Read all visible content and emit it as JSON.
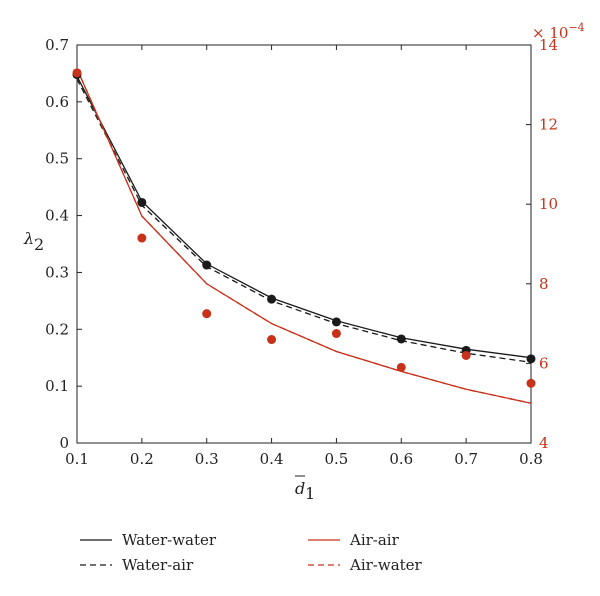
{
  "colors": {
    "black": "#1a1a1a",
    "red": "#c8311a"
  },
  "chart_data": {
    "type": "line",
    "x": [
      0.1,
      0.2,
      0.3,
      0.4,
      0.5,
      0.6,
      0.7,
      0.8
    ],
    "xlim": [
      0.1,
      0.8
    ],
    "xticks": [
      "0.1",
      "0.2",
      "0.3",
      "0.4",
      "0.5",
      "0.6",
      "0.7",
      "0.8"
    ],
    "xlabel_main": "d",
    "xlabel_sub": "1",
    "ylabel_main": "λ",
    "ylabel_sub": "2",
    "ylim_left": [
      0,
      0.7
    ],
    "yticks_left": [
      "0",
      "0.1",
      "0.2",
      "0.3",
      "0.4",
      "0.5",
      "0.6",
      "0.7"
    ],
    "ylim_right": [
      4,
      14
    ],
    "yticks_right": [
      "4",
      "6",
      "8",
      "10",
      "12",
      "14"
    ],
    "right_axis_multiplier_base": "× 10",
    "right_axis_multiplier_exp": "−4",
    "grid": false,
    "legend_position": "bottom",
    "series": [
      {
        "name": "Water-water",
        "axis": "left",
        "style": "solid",
        "color": "#1a1a1a",
        "values": [
          0.645,
          0.425,
          0.315,
          0.255,
          0.215,
          0.185,
          0.165,
          0.15
        ]
      },
      {
        "name": "Water-air",
        "axis": "left",
        "style": "dashed",
        "color": "#1a1a1a",
        "values": [
          0.64,
          0.418,
          0.31,
          0.25,
          0.21,
          0.18,
          0.158,
          0.142
        ]
      },
      {
        "name": "Air-air",
        "axis": "right",
        "style": "solid",
        "color": "#c8311a",
        "values": [
          13.4,
          9.7,
          8.0,
          7.0,
          6.3,
          5.8,
          5.35,
          5.0
        ]
      },
      {
        "name": "Air-water",
        "axis": "right",
        "style": "dashed",
        "color": "#c8311a",
        "values": [
          13.4,
          9.7,
          8.0,
          7.0,
          6.3,
          5.8,
          5.35,
          5.0
        ]
      }
    ],
    "markers": [
      {
        "axis": "left",
        "color": "#1a1a1a",
        "values": [
          0.648,
          0.423,
          0.313,
          0.253,
          0.213,
          0.183,
          0.163,
          0.148
        ]
      },
      {
        "axis": "right",
        "color": "#c8311a",
        "values": [
          13.3,
          9.15,
          7.25,
          6.6,
          6.75,
          5.9,
          6.2,
          5.5
        ]
      }
    ]
  }
}
